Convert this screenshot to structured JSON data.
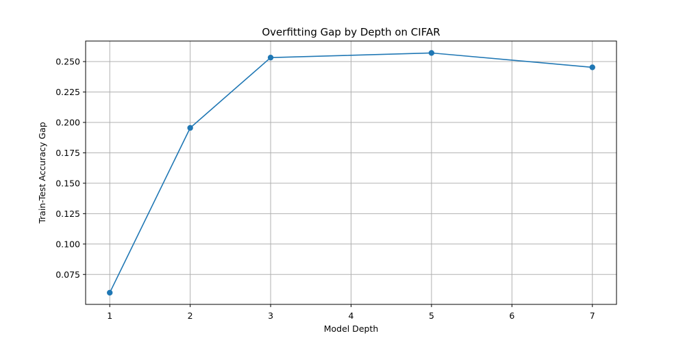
{
  "chart_data": {
    "type": "line",
    "title": "Overfitting Gap by Depth on CIFAR",
    "xlabel": "Model Depth",
    "ylabel": "Train-Test Accuracy Gap",
    "x": [
      1,
      2,
      3,
      4,
      5,
      6,
      7
    ],
    "x_ticks": [
      "1",
      "2",
      "3",
      "4",
      "5",
      "6",
      "7"
    ],
    "y_ticks": [
      "0.075",
      "0.100",
      "0.125",
      "0.150",
      "0.175",
      "0.200",
      "0.225",
      "0.250"
    ],
    "xlim": [
      0.7,
      7.3
    ],
    "ylim": [
      0.0504,
      0.2669
    ],
    "grid": true,
    "legend": false,
    "series": [
      {
        "color": "#1f77b4",
        "marker": "circle",
        "points": [
          {
            "x": 1,
            "y": 0.06
          },
          {
            "x": 2,
            "y": 0.1955
          },
          {
            "x": 3,
            "y": 0.2533
          },
          {
            "x": 5,
            "y": 0.2571
          },
          {
            "x": 7,
            "y": 0.2453
          }
        ]
      }
    ]
  }
}
